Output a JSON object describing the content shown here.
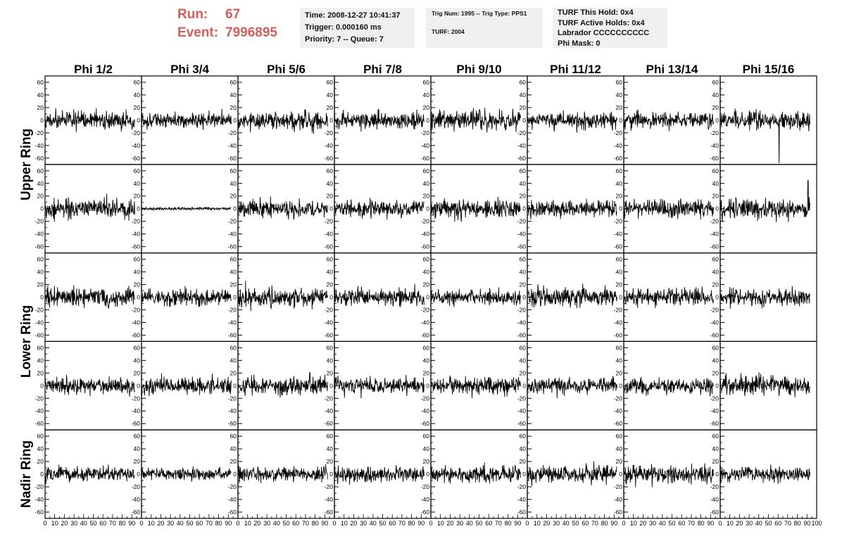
{
  "header": {
    "run_label": "Run:",
    "run_value": "67",
    "event_label": "Event:",
    "event_value": "7996895",
    "accent_color": "#d0605c"
  },
  "info_time": {
    "time": "Time: 2008-12-27 10:41:37",
    "trigger": "Trigger: 0.000160 ms",
    "priority": "Priority: 7 -- Queue: 7"
  },
  "info_trig": {
    "trig": "Trig Num: 1995 -- Trig Type: PPS1",
    "turf": "TURF: 2004"
  },
  "info_turf": {
    "hold": "TURF This Hold: 0x4",
    "active": "TURF Active Holds: 0x4",
    "labrador": "Labrador CCCCCCCCCC",
    "phimask": "Phi Mask: 0"
  },
  "chart_data": {
    "type": "line",
    "layout": "grid",
    "columns": [
      "Phi 1/2",
      "Phi 3/4",
      "Phi 5/6",
      "Phi 7/8",
      "Phi 9/10",
      "Phi 11/12",
      "Phi 13/14",
      "Phi 15/16"
    ],
    "ring_labels": [
      {
        "label": "Upper Ring",
        "rows": [
          0,
          1
        ]
      },
      {
        "label": "Lower Ring",
        "rows": [
          2,
          3
        ]
      },
      {
        "label": "Nadir Ring",
        "rows": [
          4
        ]
      }
    ],
    "rows": 5,
    "xlim": [
      0,
      100
    ],
    "ylim": [
      -70,
      70
    ],
    "x_ticks": [
      "0",
      "10",
      "20",
      "30",
      "40",
      "50",
      "60",
      "70",
      "80",
      "90",
      "100"
    ],
    "y_ticks": [
      "60",
      "40",
      "20",
      "0",
      "-20",
      "-40",
      "-60"
    ],
    "samples_per_trace": 260,
    "trace_x_range": [
      0,
      93
    ],
    "trace_amplitudes": [
      [
        12,
        10,
        12,
        11,
        13,
        10,
        11,
        12
      ],
      [
        13,
        2,
        12,
        11,
        13,
        12,
        12,
        13
      ],
      [
        13,
        11,
        12,
        11,
        10,
        12,
        12,
        10
      ],
      [
        11,
        12,
        13,
        11,
        11,
        10,
        11,
        13
      ],
      [
        10,
        8,
        10,
        10,
        11,
        12,
        12,
        10
      ]
    ],
    "spikes": [
      {
        "row": 0,
        "col": 7,
        "x": 61,
        "y": -68
      },
      {
        "row": 1,
        "col": 7,
        "x": 91,
        "y": 45
      }
    ],
    "line_color": "#000000"
  }
}
